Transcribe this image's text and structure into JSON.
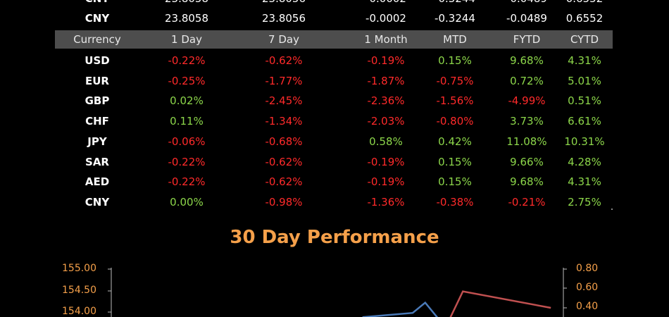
{
  "top_partial_row": {
    "currency": "CNY",
    "values": [
      "23.8058",
      "23.8056",
      "-0.0002",
      "-0.3244",
      "-0.0489",
      "0.6552"
    ],
    "value_colors": [
      "white",
      "white",
      "neg",
      "neg",
      "neg",
      "pos"
    ]
  },
  "header": [
    "Currency",
    "1 Day",
    "7 Day",
    "1 Month",
    "MTD",
    "FYTD",
    "CYTD"
  ],
  "rows": [
    {
      "currency": "USD",
      "values": [
        "-0.22%",
        "-0.62%",
        "-0.19%",
        "0.15%",
        "9.68%",
        "4.31%"
      ]
    },
    {
      "currency": "EUR",
      "values": [
        "-0.25%",
        "-1.77%",
        "-1.87%",
        "-0.75%",
        "0.72%",
        "5.01%"
      ]
    },
    {
      "currency": "GBP",
      "values": [
        "0.02%",
        "-2.45%",
        "-2.36%",
        "-1.56%",
        "-4.99%",
        "0.51%"
      ]
    },
    {
      "currency": "CHF",
      "values": [
        "0.11%",
        "-1.34%",
        "-2.03%",
        "-0.80%",
        "3.73%",
        "6.61%"
      ]
    },
    {
      "currency": "JPY",
      "values": [
        "-0.06%",
        "-0.68%",
        "0.58%",
        "0.42%",
        "11.08%",
        "10.31%"
      ]
    },
    {
      "currency": "SAR",
      "values": [
        "-0.22%",
        "-0.62%",
        "-0.19%",
        "0.15%",
        "9.66%",
        "4.28%"
      ]
    },
    {
      "currency": "AED",
      "values": [
        "-0.22%",
        "-0.62%",
        "-0.19%",
        "0.15%",
        "9.68%",
        "4.31%"
      ]
    },
    {
      "currency": "CNY",
      "values": [
        "0.00%",
        "-0.98%",
        "-1.36%",
        "-0.38%",
        "-0.21%",
        "2.75%"
      ]
    }
  ],
  "colors": {
    "negative": "#ff2a2a",
    "positive": "#8cd64a",
    "header_bg": "#4d4d4d",
    "title": "#f5a04a"
  },
  "chart_data": {
    "type": "line",
    "title": "30 Day Performance",
    "y_left_ticks": [
      "155.00",
      "154.50",
      "154.00"
    ],
    "y_right_ticks": [
      "0.80",
      "0.60",
      "0.40"
    ],
    "y_left_range": [
      154.0,
      155.0
    ],
    "y_right_range": [
      0.4,
      0.8
    ],
    "series": [
      {
        "axis": "left",
        "color": "#4a7ab8",
        "x": [
          20,
          24,
          25,
          26
        ],
        "values": [
          153.88,
          153.98,
          154.22,
          153.86
        ]
      },
      {
        "axis": "right",
        "color": "#c05050",
        "x": [
          27,
          28,
          35
        ],
        "values": [
          0.3,
          0.57,
          0.4
        ]
      }
    ],
    "x_range": [
      0,
      36
    ]
  }
}
